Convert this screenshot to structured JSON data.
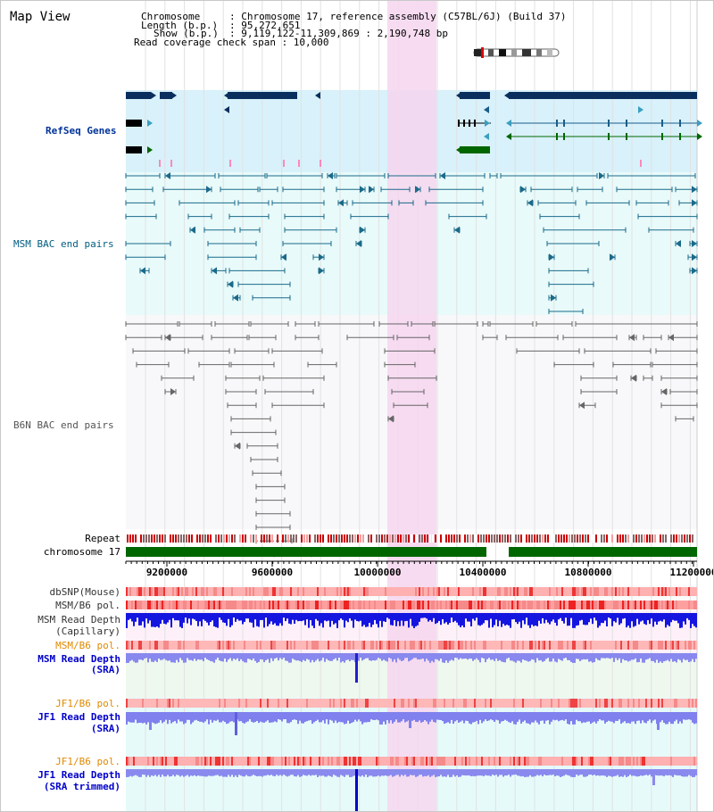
{
  "title": "Map View",
  "info": {
    "chromosome_key": "Chromosome",
    "chromosome_val": ": Chromosome 17, reference assembly (C57BL/6J) (Build 37)",
    "length_key": "Length (b.p.)",
    "length_val": ": 95,272,651",
    "show_key": "Show (b.p.)",
    "show_val": ": 9,119,122-11,309,869 : 2,190,748 bp",
    "coverage": "Read coverage check span : 10,000"
  },
  "tracks": {
    "refseq": "RefSeq Genes",
    "msm_bac": "MSM BAC end pairs",
    "b6n_bac": "B6N BAC end pairs",
    "repeat": "Repeat",
    "chromosome": "chromosome 17",
    "dbsnp": "dbSNP(Mouse)",
    "msm_pol1": "MSM/B6 pol.",
    "msm_depth_cap_1": "MSM Read Depth",
    "msm_depth_cap_2": "(Capillary)",
    "msm_pol2": "MSM/B6 pol.",
    "msm_depth_sra_1": "MSM Read Depth",
    "msm_depth_sra_2": "(SRA)",
    "jf1_pol1": "JF1/B6 pol.",
    "jf1_depth_sra_1": "JF1 Read Depth",
    "jf1_depth_sra_2": "(SRA)",
    "jf1_pol2": "JF1/B6 pol.",
    "jf1_depth_trim_1": "JF1 Read Depth",
    "jf1_depth_trim_2": "(SRA trimmed)"
  },
  "ruler": {
    "ticks": [
      "9200000",
      "9600000",
      "10000000",
      "10400000",
      "10800000",
      "11200000"
    ]
  },
  "colors": {
    "refseq_bg": "#d8f1fa",
    "bac_bg": "#e8fafa",
    "highlight": "#f6d6ef",
    "msm_gene": "#0a2f5e",
    "refseq_label": "#003399",
    "msm_label": "#005d80",
    "b6n_label": "#555555",
    "chrom_bar": "#006600",
    "orange_label": "#e08a00",
    "blue_label": "#0000cc"
  }
}
